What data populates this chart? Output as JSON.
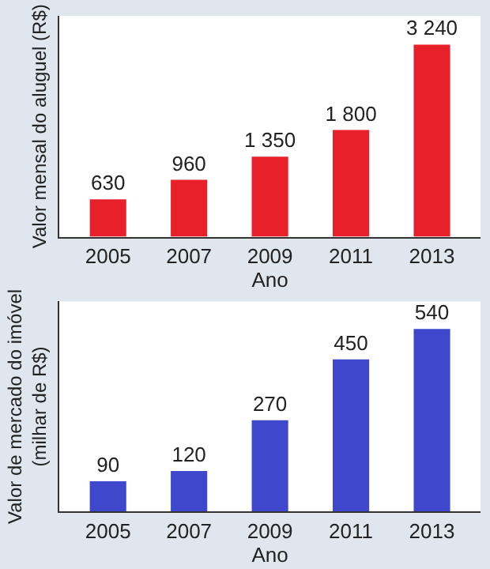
{
  "chart_data": [
    {
      "type": "bar",
      "xlabel": "Ano",
      "ylabel": "Valor mensal do aluguel (R$)",
      "categories": [
        "2005",
        "2007",
        "2009",
        "2011",
        "2013"
      ],
      "series": [
        {
          "color": "#e8202a",
          "values": [
            630,
            960,
            1350,
            1800,
            3240
          ],
          "value_labels": [
            "630",
            "960",
            "1 350",
            "1 800",
            "3 240"
          ]
        }
      ]
    },
    {
      "type": "bar",
      "xlabel": "Ano",
      "ylabel": "Valor de mercado do imóvel\n(milhar de R$)",
      "categories": [
        "2005",
        "2007",
        "2009",
        "2011",
        "2013"
      ],
      "series": [
        {
          "color": "#3f48cc",
          "values": [
            90,
            120,
            270,
            450,
            540
          ],
          "value_labels": [
            "90",
            "120",
            "270",
            "450",
            "540"
          ]
        }
      ]
    }
  ]
}
